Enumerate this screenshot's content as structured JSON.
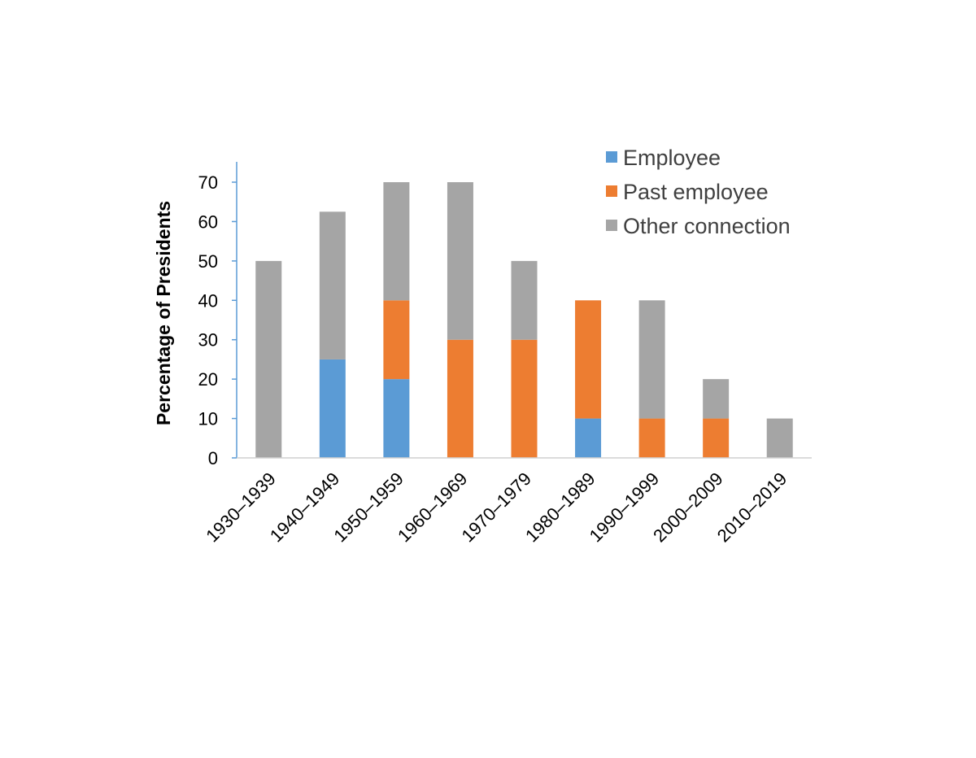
{
  "chart_data": {
    "type": "bar",
    "stacked": true,
    "title": "",
    "xlabel": "",
    "ylabel": "Percentage of Presidents",
    "ylim": [
      0,
      70
    ],
    "yticks": [
      0,
      10,
      20,
      30,
      40,
      50,
      60,
      70
    ],
    "grid": false,
    "legend_position": "top-right",
    "categories": [
      "1930–1939",
      "1940–1949",
      "1950–1959",
      "1960–1969",
      "1970–1979",
      "1980–1989",
      "1990–1999",
      "2000–2009",
      "2010–2019"
    ],
    "series": [
      {
        "name": "Employee",
        "color": "#5b9bd5",
        "values": [
          0,
          25,
          20,
          0,
          0,
          10,
          0,
          0,
          0
        ]
      },
      {
        "name": "Past employee",
        "color": "#ed7d31",
        "values": [
          0,
          0,
          20,
          30,
          30,
          30,
          10,
          10,
          0
        ]
      },
      {
        "name": "Other connection",
        "color": "#a5a5a5",
        "values": [
          50,
          37.5,
          30,
          40,
          20,
          0,
          30,
          10,
          10
        ]
      }
    ]
  }
}
